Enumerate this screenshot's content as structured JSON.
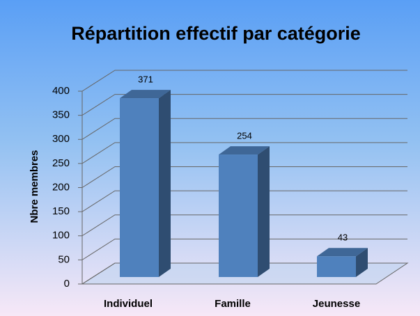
{
  "chart_data": {
    "type": "bar3d",
    "title": "Répartition effectif par catégorie",
    "y_label": "Nbre membres",
    "categories": [
      "Individuel",
      "Famille",
      "Jeunesse"
    ],
    "values": [
      371,
      254,
      43
    ],
    "color": "#4f81bd",
    "ylim": [
      0,
      400
    ],
    "yticks": [
      0,
      50,
      100,
      150,
      200,
      250,
      300,
      350,
      400
    ],
    "grid": true
  }
}
